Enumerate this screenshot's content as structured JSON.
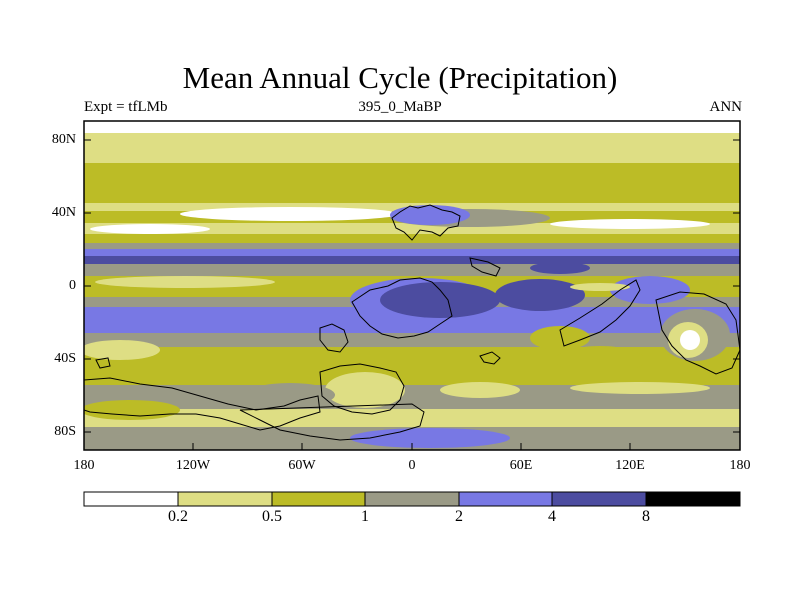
{
  "title": "Mean Annual Cycle (Precipitation)",
  "subtitle_left": "Expt = tfLMb",
  "subtitle_center": "395_0_MaBP",
  "subtitle_right": "ANN",
  "y_axis": {
    "labels": [
      "80N",
      "40N",
      "0",
      "40S",
      "80S"
    ],
    "values": [
      80,
      40,
      0,
      -40,
      -80
    ]
  },
  "x_axis": {
    "labels": [
      "180",
      "120W",
      "60W",
      "0",
      "60E",
      "120E",
      "180"
    ],
    "values": [
      -180,
      -120,
      -60,
      0,
      60,
      120,
      180
    ]
  },
  "colorbar": {
    "boundaries": [
      "0.2",
      "0.5",
      "1",
      "2",
      "4",
      "8"
    ],
    "colors": [
      "#ffffff",
      "#dede84",
      "#bcbc26",
      "#9a9a86",
      "#7878e4",
      "#4c4ca0",
      "#000000"
    ]
  },
  "colors": {
    "c0": "#ffffff",
    "c1": "#dede84",
    "c2": "#bcbc26",
    "c3": "#9a9a86",
    "c4": "#7878e4",
    "c5": "#4c4ca0",
    "c6": "#000000"
  }
}
